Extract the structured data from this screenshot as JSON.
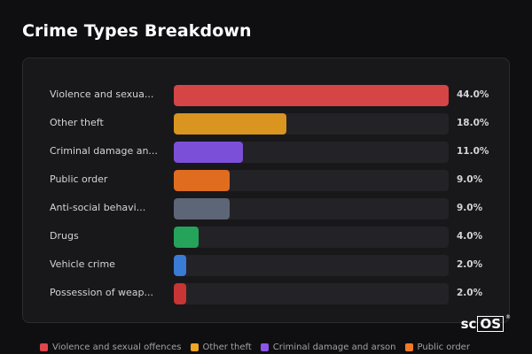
{
  "title": "Crime Types Breakdown",
  "brand": {
    "text": "sc",
    "boxed": "OS",
    "mark": "®"
  },
  "chart_data": {
    "type": "bar",
    "orientation": "horizontal",
    "title": "Crime Types Breakdown",
    "categories": [
      "Violence and sexua...",
      "Other theft",
      "Criminal damage an...",
      "Public order",
      "Anti-social behavi...",
      "Drugs",
      "Vehicle crime",
      "Possession of weap..."
    ],
    "values": [
      44.0,
      18.0,
      11.0,
      9.0,
      9.0,
      4.0,
      2.0,
      2.0
    ],
    "value_labels": [
      "44.0%",
      "18.0%",
      "11.0%",
      "9.0%",
      "9.0%",
      "4.0%",
      "2.0%",
      "2.0%"
    ],
    "colors": [
      "#d64545",
      "#d99520",
      "#7c4fd8",
      "#e06d1f",
      "#5d6677",
      "#25a35a",
      "#3a7bd5",
      "#c93434"
    ],
    "xlim": [
      0,
      44
    ],
    "unit": "%",
    "grid": false
  },
  "legend": [
    {
      "label": "Violence and sexual offences",
      "color": "#e0454a"
    },
    {
      "label": "Other theft",
      "color": "#f0a526"
    },
    {
      "label": "Criminal damage and arson",
      "color": "#8b55e8"
    },
    {
      "label": "Public order",
      "color": "#f07a28"
    }
  ]
}
